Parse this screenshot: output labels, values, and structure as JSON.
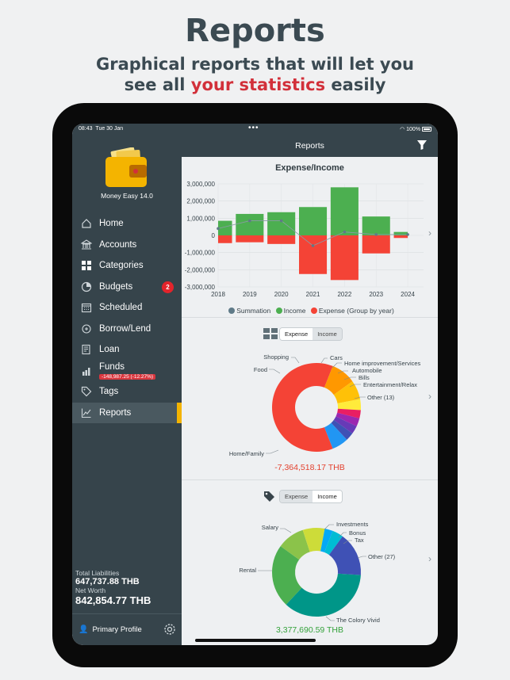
{
  "promo": {
    "title": "Reports",
    "subtitle_line1": "Graphical reports that will let you",
    "subtitle_line2_prefix": "see all ",
    "subtitle_highlight": "your statistics",
    "subtitle_suffix": " easily"
  },
  "status_bar": {
    "time": "08:43",
    "date": "Tue 30 Jan",
    "battery": "100%"
  },
  "sidebar": {
    "app_name": "Money Easy 14.0",
    "items": [
      {
        "label": "Home",
        "icon": "home-icon"
      },
      {
        "label": "Accounts",
        "icon": "bank-icon"
      },
      {
        "label": "Categories",
        "icon": "grid-icon"
      },
      {
        "label": "Budgets",
        "icon": "budget-icon",
        "badge": "2"
      },
      {
        "label": "Scheduled",
        "icon": "calendar-icon"
      },
      {
        "label": "Borrow/Lend",
        "icon": "handshake-icon"
      },
      {
        "label": "Loan",
        "icon": "loan-icon"
      },
      {
        "label": "Funds",
        "icon": "funds-icon",
        "value": "-148,987.25 (-12.27%)"
      },
      {
        "label": "Tags",
        "icon": "tag-icon"
      },
      {
        "label": "Reports",
        "icon": "report-icon",
        "active": true
      }
    ],
    "total_liabilities_label": "Total Liabilities",
    "total_liabilities": "647,737.88 THB",
    "net_worth_label": "Net Worth",
    "net_worth": "842,854.77 THB",
    "profile": "Primary Profile"
  },
  "header": {
    "title": "Reports"
  },
  "expense_income_chart": {
    "title": "Expense/Income",
    "legend": [
      "Summation",
      "Income",
      "Expense (Group by year)"
    ],
    "colors": {
      "income": "#4caf50",
      "expense": "#f44336",
      "summation": "#5f7a88"
    }
  },
  "chart_data": [
    {
      "type": "bar",
      "title": "Expense/Income",
      "categories": [
        "2018",
        "2019",
        "2020",
        "2021",
        "2022",
        "2023",
        "2024"
      ],
      "series": [
        {
          "name": "Income",
          "values": [
            850000,
            1250000,
            1350000,
            1650000,
            2800000,
            1100000,
            200000
          ]
        },
        {
          "name": "Expense",
          "values": [
            -450000,
            -400000,
            -500000,
            -2250000,
            -2600000,
            -1050000,
            -150000
          ]
        },
        {
          "name": "Summation",
          "values": [
            400000,
            850000,
            850000,
            -600000,
            200000,
            50000,
            50000
          ]
        }
      ],
      "yticks": [
        "3,000,000",
        "2,000,000",
        "1,000,000",
        "0",
        "-1,000,000",
        "-2,000,000",
        "-3,000,000"
      ],
      "ylim": [
        -3000000,
        3000000
      ],
      "xlabels": [
        "2018",
        "2019",
        "2020",
        "2021",
        "2022",
        "2023",
        "2024"
      ]
    },
    {
      "type": "pie",
      "title": "",
      "labels": [
        "Home/Family",
        "Food",
        "Shopping",
        "Cars",
        "Home improvement/Services",
        "Automobile",
        "Bills",
        "Entertainment/Relax",
        "Other (13)"
      ],
      "values": [
        62,
        9,
        7,
        4,
        3,
        3,
        3,
        3,
        6
      ],
      "colors": [
        "#f44336",
        "#ff9800",
        "#ffc107",
        "#ffeb3b",
        "#e91e63",
        "#9c27b0",
        "#673ab7",
        "#3f51b5",
        "#2196f3"
      ]
    },
    {
      "type": "pie",
      "title": "",
      "labels": [
        "The Colory Vivid",
        "Rental",
        "Salary",
        "Investments",
        "Bonus",
        "Tax",
        "Other (27)"
      ],
      "values": [
        36,
        23,
        10,
        8,
        3,
        4,
        16
      ],
      "colors": [
        "#009688",
        "#4caf50",
        "#8bc34a",
        "#cddc39",
        "#03a9f4",
        "#00bcd4",
        "#3f51b5"
      ]
    }
  ],
  "expense_card": {
    "toggle": [
      "Expense",
      "Income"
    ],
    "selected": "Expense",
    "total": "-7,364,518.17 THB"
  },
  "income_card": {
    "toggle": [
      "Expense",
      "Income"
    ],
    "selected": "Income",
    "total": "3,377,690.59 THB"
  }
}
